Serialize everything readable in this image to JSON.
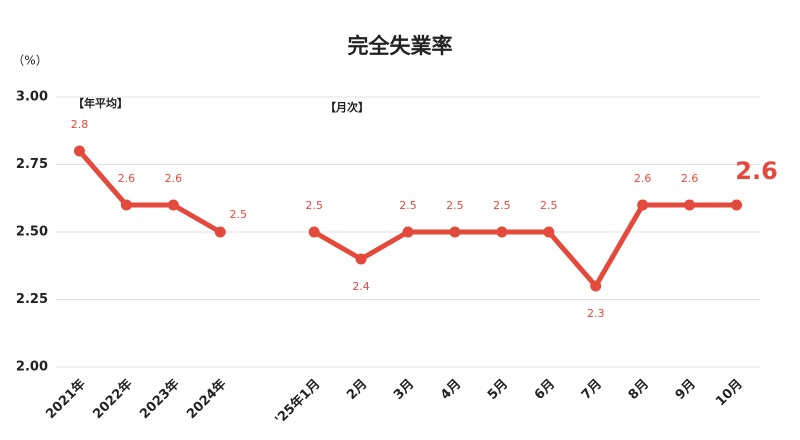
{
  "chart_data": {
    "type": "line",
    "title": "完全失業率",
    "y_label": "（%）",
    "annotations": [
      "【年平均】",
      "【月次】"
    ],
    "categories": [
      "2021年",
      "2022年",
      "2023年",
      "2024年",
      null,
      "'25年1月",
      "2月",
      "3月",
      "4月",
      "5月",
      "6月",
      "7月",
      "8月",
      "9月",
      "10月"
    ],
    "values": [
      2.8,
      2.6,
      2.6,
      2.5,
      null,
      2.5,
      2.4,
      2.5,
      2.5,
      2.5,
      2.5,
      2.3,
      2.6,
      2.6,
      2.6
    ],
    "color": "#e34a3b",
    "ylim": [
      2,
      3
    ],
    "yticks": [
      {
        "value": 2,
        "label": "2.00"
      },
      {
        "value": 2.25,
        "label": "2.25"
      },
      {
        "value": 2.5,
        "label": "2.50"
      },
      {
        "value": 2.75,
        "label": "2.75"
      },
      {
        "value": 3,
        "label": "3.00"
      }
    ],
    "grid": true
  }
}
